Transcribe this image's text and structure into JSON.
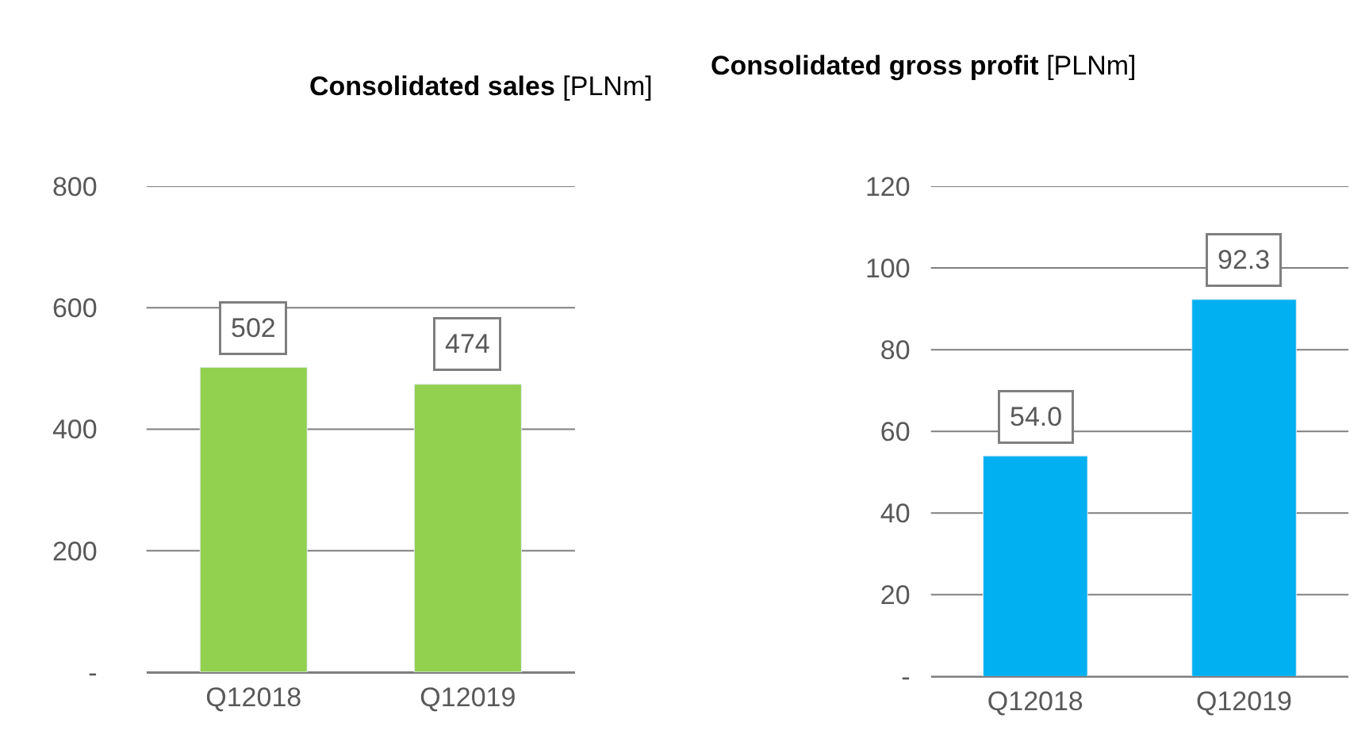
{
  "chart_data": [
    {
      "type": "bar",
      "title": "Consolidated sales [PLNm]",
      "categories": [
        "Q12018",
        "Q12019"
      ],
      "values": [
        502,
        474
      ],
      "color": "#92d050",
      "ylim": [
        0,
        800
      ],
      "yticks": [
        {
          "value": 0,
          "label": "-"
        },
        200,
        400,
        600,
        800
      ],
      "grid": "y",
      "data_labels": true
    },
    {
      "type": "bar",
      "title": "Consolidated gross profit [PLNm]",
      "categories": [
        "Q12018",
        "Q12019"
      ],
      "values": [
        54.0,
        92.3
      ],
      "value_labels": [
        "54.0",
        "92.3"
      ],
      "color": "#00b0f0",
      "ylim": [
        0,
        120
      ],
      "yticks": [
        {
          "value": 0,
          "label": "-"
        },
        20,
        40,
        60,
        80,
        100,
        120
      ],
      "grid": "y"
    }
  ]
}
